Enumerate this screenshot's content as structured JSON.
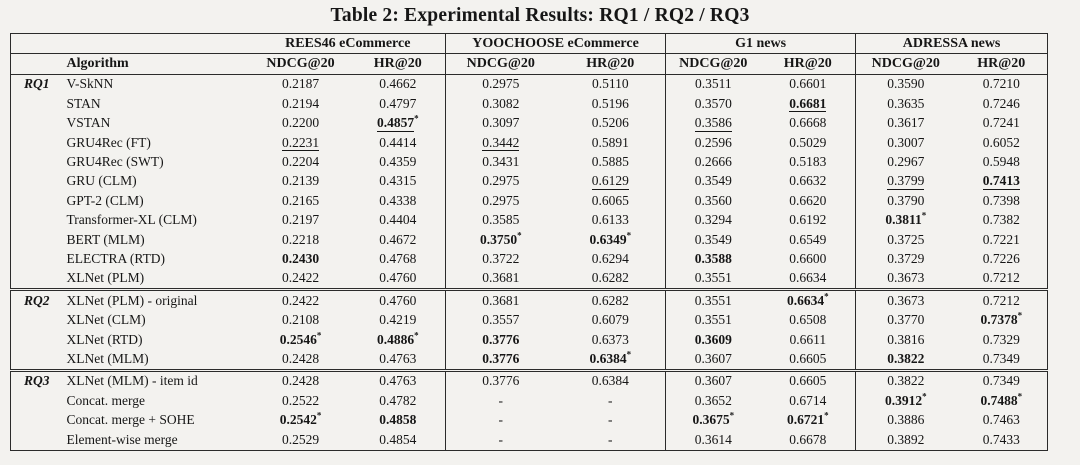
{
  "title": "Table 2: Experimental Results: RQ1 / RQ2 / RQ3",
  "table": {
    "algorithm_header": "Algorithm",
    "groups": [
      "REES46 eCommerce",
      "YOOCHOOSE eCommerce",
      "G1 news",
      "ADRESSA news"
    ],
    "metrics": [
      "NDCG@20",
      "HR@20"
    ],
    "cell_flag_legend": "value string format: number|flags where b=bold, u=underlined, *=star superscript",
    "sections": [
      {
        "label": "RQ1",
        "rows": [
          {
            "algorithm": "V-SkNN",
            "cells": [
              "0.2187",
              "0.4662",
              "0.2975",
              "0.5110",
              "0.3511",
              "0.6601",
              "0.3590",
              "0.7210"
            ]
          },
          {
            "algorithm": "STAN",
            "cells": [
              "0.2194",
              "0.4797",
              "0.3082",
              "0.5196",
              "0.3570",
              "0.6681|bu",
              "0.3635",
              "0.7246"
            ]
          },
          {
            "algorithm": "VSTAN",
            "cells": [
              "0.2200",
              "0.4857|bu*",
              "0.3097",
              "0.5206",
              "0.3586|u",
              "0.6668",
              "0.3617",
              "0.7241"
            ]
          },
          {
            "algorithm": "GRU4Rec (FT)",
            "cells": [
              "0.2231|u",
              "0.4414",
              "0.3442|u",
              "0.5891",
              "0.2596",
              "0.5029",
              "0.3007",
              "0.6052"
            ]
          },
          {
            "algorithm": "GRU4Rec (SWT)",
            "cells": [
              "0.2204",
              "0.4359",
              "0.3431",
              "0.5885",
              "0.2666",
              "0.5183",
              "0.2967",
              "0.5948"
            ]
          },
          {
            "algorithm": "GRU (CLM)",
            "cells": [
              "0.2139",
              "0.4315",
              "0.2975",
              "0.6129|u",
              "0.3549",
              "0.6632",
              "0.3799|u",
              "0.7413|bu"
            ]
          },
          {
            "algorithm": "GPT-2 (CLM)",
            "cells": [
              "0.2165",
              "0.4338",
              "0.2975",
              "0.6065",
              "0.3560",
              "0.6620",
              "0.3790",
              "0.7398"
            ]
          },
          {
            "algorithm": "Transformer-XL (CLM)",
            "cells": [
              "0.2197",
              "0.4404",
              "0.3585",
              "0.6133",
              "0.3294",
              "0.6192",
              "0.3811|b*",
              "0.7382"
            ]
          },
          {
            "algorithm": "BERT (MLM)",
            "cells": [
              "0.2218",
              "0.4672",
              "0.3750|b*",
              "0.6349|b*",
              "0.3549",
              "0.6549",
              "0.3725",
              "0.7221"
            ]
          },
          {
            "algorithm": "ELECTRA (RTD)",
            "cells": [
              "0.2430|b",
              "0.4768",
              "0.3722",
              "0.6294",
              "0.3588|b",
              "0.6600",
              "0.3729",
              "0.7226"
            ]
          },
          {
            "algorithm": "XLNet (PLM)",
            "cells": [
              "0.2422",
              "0.4760",
              "0.3681",
              "0.6282",
              "0.3551",
              "0.6634",
              "0.3673",
              "0.7212"
            ]
          }
        ]
      },
      {
        "label": "RQ2",
        "rows": [
          {
            "algorithm": "XLNet (PLM) - original",
            "cells": [
              "0.2422",
              "0.4760",
              "0.3681",
              "0.6282",
              "0.3551",
              "0.6634|b*",
              "0.3673",
              "0.7212"
            ]
          },
          {
            "algorithm": "XLNet (CLM)",
            "cells": [
              "0.2108",
              "0.4219",
              "0.3557",
              "0.6079",
              "0.3551",
              "0.6508",
              "0.3770",
              "0.7378|b*"
            ]
          },
          {
            "algorithm": "XLNet (RTD)",
            "cells": [
              "0.2546|b*",
              "0.4886|b*",
              "0.3776|b",
              "0.6373",
              "0.3609|b",
              "0.6611",
              "0.3816",
              "0.7329"
            ]
          },
          {
            "algorithm": "XLNet (MLM)",
            "cells": [
              "0.2428",
              "0.4763",
              "0.3776|b",
              "0.6384|b*",
              "0.3607",
              "0.6605",
              "0.3822|b",
              "0.7349"
            ]
          }
        ]
      },
      {
        "label": "RQ3",
        "rows": [
          {
            "algorithm": "XLNet (MLM) - item id",
            "cells": [
              "0.2428",
              "0.4763",
              "0.3776",
              "0.6384",
              "0.3607",
              "0.6605",
              "0.3822",
              "0.7349"
            ]
          },
          {
            "algorithm": "Concat. merge",
            "cells": [
              "0.2522",
              "0.4782",
              "-",
              "-",
              "0.3652",
              "0.6714",
              "0.3912|b*",
              "0.7488|b*"
            ]
          },
          {
            "algorithm": "Concat. merge + SOHE",
            "cells": [
              "0.2542|b*",
              "0.4858|b",
              "-",
              "-",
              "0.3675|b*",
              "0.6721|b*",
              "0.3886",
              "0.7463"
            ]
          },
          {
            "algorithm": "Element-wise merge",
            "cells": [
              "0.2529",
              "0.4854",
              "-",
              "-",
              "0.3614",
              "0.6678",
              "0.3892",
              "0.7433"
            ]
          }
        ]
      }
    ]
  }
}
